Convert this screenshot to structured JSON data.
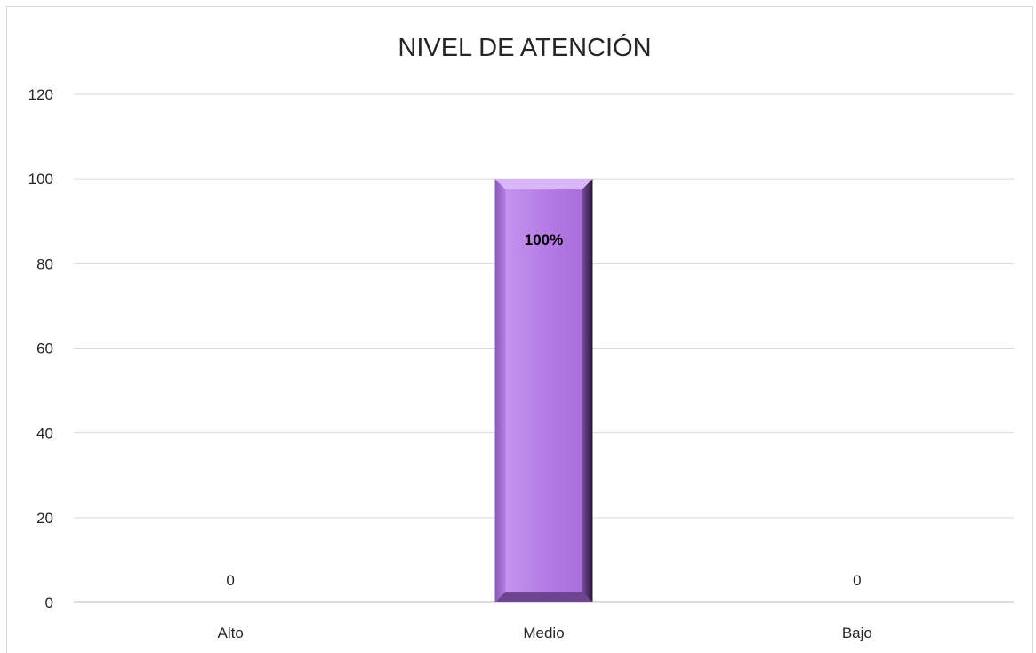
{
  "chart_data": {
    "type": "bar",
    "title": "NIVEL DE ATENCIÓN",
    "categories": [
      "Alto",
      "Medio",
      "Bajo"
    ],
    "values": [
      0,
      100,
      0
    ],
    "data_labels": [
      "0",
      "100%",
      "0"
    ],
    "xlabel": "",
    "ylabel": "",
    "ylim": [
      0,
      120
    ],
    "yticks": [
      0,
      20,
      40,
      60,
      80,
      100,
      120
    ],
    "grid": true,
    "legend": "none",
    "bar_color": "#b57de6"
  }
}
